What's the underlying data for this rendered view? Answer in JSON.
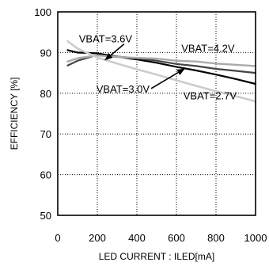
{
  "chart_data": {
    "type": "line",
    "xlabel": "LED CURRENT : ILED[mA]",
    "ylabel": "EFFICIENCY [%]",
    "xlim": [
      0,
      1000
    ],
    "ylim": [
      50,
      100
    ],
    "x_ticks": [
      0,
      200,
      400,
      600,
      800,
      1000
    ],
    "y_ticks": [
      50,
      60,
      70,
      80,
      90,
      100
    ],
    "grid": true,
    "series": [
      {
        "name": "VBAT=3.0V",
        "color": "#000000",
        "x": [
          50,
          100,
          200,
          300,
          400,
          500,
          600,
          700,
          800,
          900,
          1000
        ],
        "y": [
          90.6,
          90.0,
          89.8,
          89.0,
          88.3,
          87.5,
          86.5,
          85.6,
          84.6,
          83.5,
          82.3
        ]
      },
      {
        "name": "VBAT=3.6V",
        "color": "#444444",
        "x": [
          50,
          100,
          200,
          300,
          400,
          500,
          600,
          700,
          800,
          900,
          1000
        ],
        "y": [
          86.8,
          88.0,
          89.4,
          89.0,
          88.6,
          88.0,
          87.2,
          86.7,
          86.0,
          85.5,
          85.0
        ]
      },
      {
        "name": "VBAT=4.2V",
        "color": "#aaaaaa",
        "x": [
          50,
          100,
          200,
          300,
          400,
          500,
          600,
          700,
          800,
          900,
          1000
        ],
        "y": [
          87.8,
          88.6,
          89.3,
          88.9,
          88.7,
          88.5,
          88.0,
          87.8,
          87.3,
          87.0,
          86.7
        ]
      },
      {
        "name": "VBAT=2.7V",
        "color": "#cccccc",
        "x": [
          50,
          100,
          200,
          300,
          400,
          500,
          600,
          700,
          800,
          900,
          1000
        ],
        "y": [
          92.8,
          91.0,
          88.8,
          87.3,
          85.9,
          84.6,
          83.2,
          81.8,
          80.5,
          79.3,
          78.0
        ]
      }
    ],
    "annotations": [
      {
        "text": "VBAT=3.6V",
        "x": 107,
        "y": 92.5,
        "arrow_to": [
          240,
          88.2
        ]
      },
      {
        "text": "VBAT=4.2V",
        "x": 625,
        "y": 90.2
      },
      {
        "text": "VBAT=3.0V",
        "x": 195,
        "y": 80.2,
        "arrow_to": [
          640,
          86.0
        ]
      },
      {
        "text": "VBAT=2.7V",
        "x": 635,
        "y": 78.5
      }
    ]
  }
}
